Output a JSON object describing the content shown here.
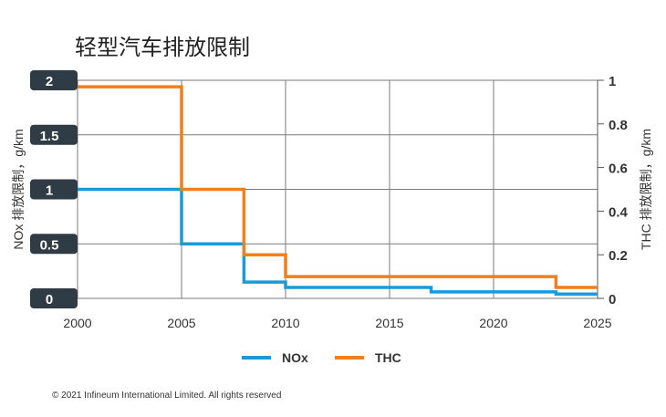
{
  "chart_data": {
    "type": "line",
    "step": true,
    "title": "轻型汽车排放限制",
    "ylabel_left": "NOx 排放限制，g/km",
    "ylabel_right": "THC 排放限制，g/km",
    "x_ticks": [
      "2000",
      "2005",
      "2010",
      "2015",
      "2020",
      "2025"
    ],
    "y_left_ticks": [
      "0",
      "0.5",
      "1",
      "1.5",
      "2"
    ],
    "y_right_ticks": [
      "0",
      "0.2",
      "0.4",
      "0.6",
      "0.8",
      "1"
    ],
    "xlim": [
      2000,
      2025
    ],
    "ylim_left": [
      0,
      2
    ],
    "ylim_right": [
      0,
      1
    ],
    "grid": true,
    "legend_position": "bottom-center",
    "series": [
      {
        "name": "NOx",
        "axis": "left",
        "color": "#1c9ad6",
        "x": [
          2000,
          2005,
          2008,
          2010,
          2017,
          2023,
          2025
        ],
        "y": [
          1.0,
          0.5,
          0.15,
          0.1,
          0.06,
          0.04,
          0.04
        ]
      },
      {
        "name": "THC",
        "axis": "right",
        "color": "#f07f1d",
        "x": [
          2000,
          2005,
          2008,
          2010,
          2023,
          2025
        ],
        "y": [
          0.97,
          0.5,
          0.2,
          0.1,
          0.05,
          0.05
        ]
      }
    ]
  },
  "copyright": "© 2021 Infineum International Limited. All rights reserved"
}
